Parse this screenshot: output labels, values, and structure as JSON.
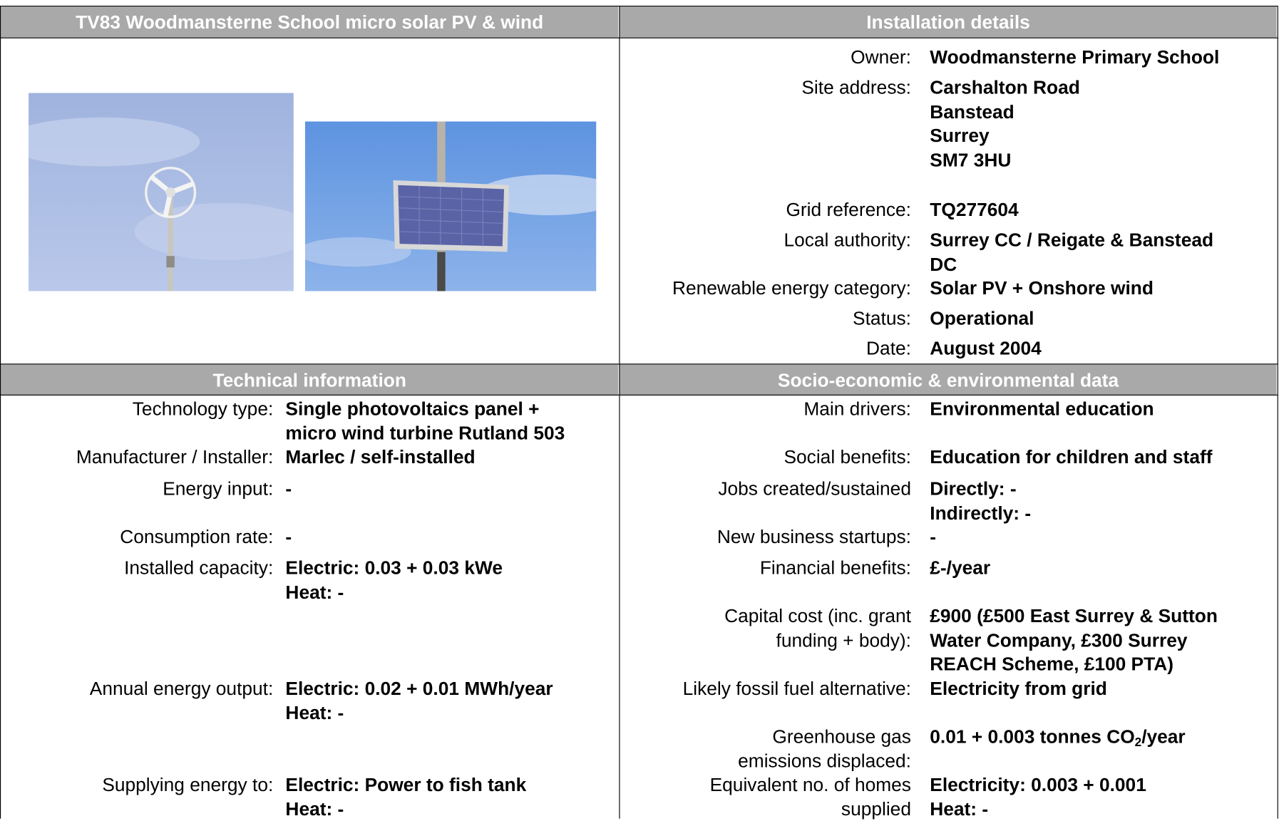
{
  "header": {
    "title": "TV83 Woodmansterne School micro solar PV & wind",
    "installation_title": "Installation details"
  },
  "installation": [
    {
      "label": [
        "Owner:"
      ],
      "value": [
        "Woodmansterne Primary School"
      ]
    },
    {
      "label": [
        "Site address:"
      ],
      "value": [
        "Carshalton Road",
        "Banstead",
        "Surrey",
        "SM7 3HU"
      ]
    },
    {
      "label": [
        "Grid reference:"
      ],
      "value": [
        "TQ277604"
      ]
    },
    {
      "label": [
        "Local authority:"
      ],
      "value": [
        "Surrey CC / Reigate & Banstead",
        "DC"
      ]
    },
    {
      "label": [
        "Renewable energy category:"
      ],
      "value": [
        "Solar PV + Onshore wind"
      ]
    },
    {
      "label": [
        "Status:"
      ],
      "value": [
        "Operational"
      ]
    },
    {
      "label": [
        "Date:"
      ],
      "value": [
        "August 2004"
      ]
    }
  ],
  "technical": {
    "title": "Technical information",
    "rows": [
      {
        "label": [
          "Technology type:"
        ],
        "value": [
          "Single photovoltaics panel +",
          "micro wind turbine Rutland 503"
        ]
      },
      {
        "label": [
          "Manufacturer / Installer:"
        ],
        "value": [
          "Marlec / self-installed"
        ]
      },
      {
        "label": [
          "Energy input:"
        ],
        "value": [
          "-"
        ]
      },
      {
        "label": [
          "Consumption rate:"
        ],
        "value": [
          "-"
        ]
      },
      {
        "label": [
          "Installed capacity:"
        ],
        "value": [
          "Electric: 0.03 + 0.03 kWe",
          "Heat: -"
        ]
      },
      {
        "label": [
          "Annual energy output:"
        ],
        "value": [
          "Electric: 0.02 + 0.01 MWh/year",
          "Heat: -"
        ]
      },
      {
        "label": [
          "Supplying energy to:"
        ],
        "value": [
          "Electric: Power to fish tank",
          "Heat: -"
        ]
      }
    ]
  },
  "socio": {
    "title": "Socio-economic & environmental data",
    "rows": [
      {
        "label": [
          "Main drivers:"
        ],
        "value": [
          "Environmental education"
        ]
      },
      {
        "label": [
          "Social benefits:"
        ],
        "value": [
          "Education for children and staff"
        ]
      },
      {
        "label": [
          "Jobs created/sustained"
        ],
        "value": [
          "Directly: -",
          "Indirectly: -"
        ]
      },
      {
        "label": [
          "New business startups:"
        ],
        "value": [
          "-"
        ]
      },
      {
        "label": [
          "Financial benefits:"
        ],
        "value": [
          "£-/year"
        ]
      },
      {
        "label": [
          "Capital cost (inc. grant",
          "funding + body):"
        ],
        "value": [
          "£900 (£500 East Surrey & Sutton",
          "Water Company, £300 Surrey",
          "REACH Scheme, £100 PTA)"
        ]
      },
      {
        "label": [
          "Likely fossil fuel alternative:"
        ],
        "value": [
          "Electricity from grid"
        ]
      },
      {
        "label": [
          "Greenhouse gas",
          "emissions displaced:"
        ],
        "value": [
          [
            "0.01 + 0.003 tonnes CO",
            "2",
            "/year"
          ]
        ]
      },
      {
        "label": [
          "Equivalent no. of homes",
          "supplied"
        ],
        "value": [
          "Electricity: 0.003 + 0.001",
          "Heat: -"
        ]
      }
    ]
  }
}
